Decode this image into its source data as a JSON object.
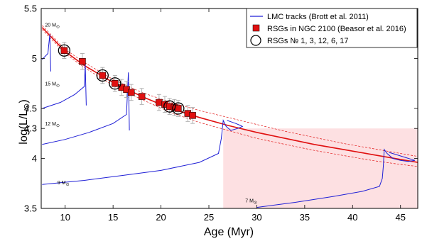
{
  "chart_data": {
    "type": "scatter",
    "xlabel": "Age (Myr)",
    "ylabel_main": "log(L/L",
    "ylabel_sun": "⊙",
    "ylabel_close": ")",
    "xlim": [
      7.5,
      46.8
    ],
    "ylim": [
      3.5,
      5.5
    ],
    "xticks": [
      10,
      15,
      20,
      25,
      30,
      35,
      40,
      45
    ],
    "xtick_labels": [
      "10",
      "15",
      "20",
      "25",
      "30",
      "35",
      "40",
      "45"
    ],
    "yticks": [
      3.5,
      4.0,
      4.3,
      4.5,
      5.0,
      5.5
    ],
    "ytick_labels": [
      "3.5",
      "4",
      "4.3",
      "4.5",
      "5",
      "5.5"
    ],
    "shaded_region": {
      "x": [
        26.5,
        46.8
      ],
      "y": [
        3.5,
        4.3
      ],
      "color": "#fde0e2"
    },
    "colors": {
      "tracks": "#1f1fd6",
      "fit": "#e01010",
      "rsg_fill": "#e01010",
      "error": "#aaaaaa"
    },
    "legend": {
      "position": "top-right",
      "entries": [
        {
          "label": "LMC tracks (Brott et al. 2011)",
          "marker": "line"
        },
        {
          "label": "RSGs in NGC 2100 (Beasor et al. 2016)",
          "marker": "red-square"
        },
        {
          "label": "RSGs № 1, 3, 12, 6, 17",
          "marker": "open-circle"
        }
      ]
    },
    "mass_labels": [
      {
        "text": "20 M",
        "sun": "⊙",
        "x": 7.9,
        "y": 5.32
      },
      {
        "text": "15 M",
        "sun": "⊙",
        "x": 7.9,
        "y": 4.73
      },
      {
        "text": "12 M",
        "sun": "⊙",
        "x": 7.9,
        "y": 4.33
      },
      {
        "text": "9 M",
        "sun": "⊙",
        "x": 9.2,
        "y": 3.74
      },
      {
        "text": "7 M",
        "sun": "⊙",
        "x": 28.8,
        "y": 3.56
      }
    ],
    "tracks": [
      {
        "name": "20",
        "points": [
          [
            7.6,
            4.99
          ],
          [
            8.2,
            5.05
          ],
          [
            8.4,
            5.24
          ],
          [
            8.5,
            4.87
          ]
        ]
      },
      {
        "name": "15",
        "points": [
          [
            7.6,
            4.5
          ],
          [
            9.5,
            4.56
          ],
          [
            11.0,
            4.64
          ],
          [
            12.0,
            4.72
          ],
          [
            12.1,
            4.94
          ],
          [
            12.2,
            4.53
          ]
        ]
      },
      {
        "name": "12",
        "points": [
          [
            7.6,
            4.14
          ],
          [
            10.0,
            4.19
          ],
          [
            12.5,
            4.26
          ],
          [
            15.0,
            4.35
          ],
          [
            16.4,
            4.44
          ],
          [
            16.6,
            4.86
          ],
          [
            16.7,
            4.28
          ]
        ]
      },
      {
        "name": "9",
        "points": [
          [
            7.6,
            3.74
          ],
          [
            12.0,
            3.78
          ],
          [
            16.0,
            3.83
          ],
          [
            20.0,
            3.88
          ],
          [
            24.0,
            3.96
          ],
          [
            26.0,
            4.05
          ],
          [
            26.3,
            4.2
          ],
          [
            26.5,
            4.38
          ],
          [
            26.8,
            4.32
          ],
          [
            27.3,
            4.28
          ],
          [
            28.0,
            4.3
          ],
          [
            28.5,
            4.32
          ],
          [
            28.3,
            4.33
          ],
          [
            27.8,
            4.35
          ],
          [
            27.2,
            4.37
          ],
          [
            26.9,
            4.38
          ]
        ]
      },
      {
        "name": "7",
        "points": [
          [
            30.0,
            3.51
          ],
          [
            34.0,
            3.56
          ],
          [
            38.0,
            3.62
          ],
          [
            41.0,
            3.67
          ],
          [
            42.8,
            3.72
          ],
          [
            43.1,
            3.8
          ],
          [
            43.2,
            3.92
          ],
          [
            43.3,
            4.09
          ],
          [
            43.6,
            4.05
          ],
          [
            44.2,
            4.0
          ],
          [
            45.0,
            3.98
          ],
          [
            45.8,
            3.97
          ],
          [
            46.5,
            3.98
          ],
          [
            45.5,
            4.01
          ],
          [
            44.5,
            4.04
          ],
          [
            43.8,
            4.06
          ]
        ]
      }
    ],
    "fit": {
      "center": [
        [
          7.6,
          5.31
        ],
        [
          10,
          5.07
        ],
        [
          12,
          4.93
        ],
        [
          15,
          4.76
        ],
        [
          18,
          4.62
        ],
        [
          21,
          4.5
        ],
        [
          24,
          4.41
        ],
        [
          27,
          4.33
        ],
        [
          30,
          4.26
        ],
        [
          33,
          4.2
        ],
        [
          36,
          4.14
        ],
        [
          39,
          4.09
        ],
        [
          42,
          4.04
        ],
        [
          45,
          3.99
        ],
        [
          46.8,
          3.96
        ]
      ],
      "upper": [
        [
          7.6,
          5.33
        ],
        [
          10,
          5.09
        ],
        [
          12,
          4.96
        ],
        [
          15,
          4.79
        ],
        [
          18,
          4.66
        ],
        [
          21,
          4.56
        ],
        [
          24,
          4.48
        ],
        [
          27,
          4.41
        ],
        [
          30,
          4.34
        ],
        [
          33,
          4.27
        ],
        [
          36,
          4.21
        ],
        [
          39,
          4.15
        ],
        [
          42,
          4.1
        ],
        [
          45,
          4.05
        ],
        [
          46.8,
          4.02
        ]
      ],
      "lower": [
        [
          7.6,
          5.29
        ],
        [
          10,
          5.05
        ],
        [
          12,
          4.91
        ],
        [
          15,
          4.73
        ],
        [
          18,
          4.59
        ],
        [
          21,
          4.46
        ],
        [
          24,
          4.36
        ],
        [
          27,
          4.28
        ],
        [
          30,
          4.2
        ],
        [
          33,
          4.14
        ],
        [
          36,
          4.08
        ],
        [
          39,
          4.03
        ],
        [
          42,
          3.98
        ],
        [
          45,
          3.94
        ],
        [
          46.8,
          3.92
        ]
      ]
    },
    "rsg_points": [
      {
        "x": 9.9,
        "y": 5.08,
        "err": 0.08,
        "circled": true
      },
      {
        "x": 11.8,
        "y": 4.97,
        "err": 0.08,
        "circled": false
      },
      {
        "x": 13.9,
        "y": 4.83,
        "err": 0.08,
        "circled": true
      },
      {
        "x": 15.2,
        "y": 4.75,
        "err": 0.08,
        "circled": true
      },
      {
        "x": 15.9,
        "y": 4.71,
        "err": 0.08,
        "circled": false
      },
      {
        "x": 16.4,
        "y": 4.69,
        "err": 0.08,
        "circled": false
      },
      {
        "x": 16.9,
        "y": 4.66,
        "err": 0.08,
        "circled": false
      },
      {
        "x": 18.0,
        "y": 4.62,
        "err": 0.08,
        "circled": false
      },
      {
        "x": 19.8,
        "y": 4.56,
        "err": 0.08,
        "circled": false
      },
      {
        "x": 20.4,
        "y": 4.54,
        "err": 0.08,
        "circled": false
      },
      {
        "x": 20.9,
        "y": 4.52,
        "err": 0.08,
        "circled": true
      },
      {
        "x": 21.4,
        "y": 4.51,
        "err": 0.08,
        "circled": false
      },
      {
        "x": 21.8,
        "y": 4.5,
        "err": 0.08,
        "circled": true
      },
      {
        "x": 22.8,
        "y": 4.45,
        "err": 0.08,
        "circled": false
      },
      {
        "x": 23.3,
        "y": 4.43,
        "err": 0.08,
        "circled": false
      }
    ]
  }
}
